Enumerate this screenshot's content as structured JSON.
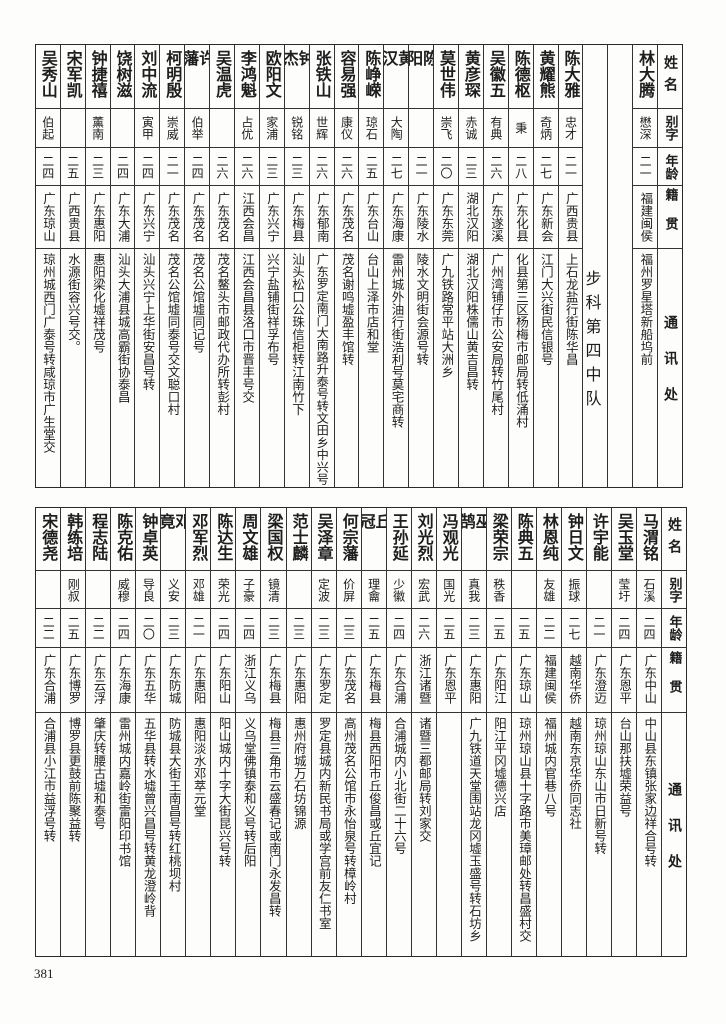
{
  "headers": {
    "name": "姓名",
    "alias": "别字",
    "age": "年龄",
    "native": "籍贯",
    "address": "通讯处"
  },
  "top_table": {
    "first_rows": [
      {
        "name": "林大腾",
        "alias": "懋深",
        "age": "二一",
        "native": "福建闽侯",
        "address": "福州罗星塔新船坞前"
      }
    ],
    "blank_column": "",
    "section_label": "步科第四中队",
    "rows": [
      {
        "name": "陈大雅",
        "alias": "忠才",
        "age": "二一",
        "native": "广西贵县",
        "address": "上石龙盐行街陈华昌"
      },
      {
        "name": "黄耀熊",
        "alias": "奇炳",
        "age": "二七",
        "native": "广东新会",
        "address": "江门大兴街民信银号"
      },
      {
        "name": "陈德枢",
        "alias": "秉",
        "age": "二八",
        "native": "广东化县",
        "address": "化县第三区杨梅市邮局转低涌村"
      },
      {
        "name": "吴徽五",
        "alias": "有典",
        "age": "二六",
        "native": "广东遂溪",
        "address": "广州湾铺仔市公安局转竹尾村"
      },
      {
        "name": "黄彦琛",
        "alias": "赤诚",
        "age": "二三",
        "native": "湖北汉阳",
        "address": "湖北汉阳株儒山黄吉昌转"
      },
      {
        "name": "莫世伟",
        "alias": "崇飞",
        "age": "二〇",
        "native": "广东东莞",
        "address": "广九铁路常平站大洲乡"
      },
      {
        "name": "陈阳",
        "alias": "",
        "age": "二一",
        "native": "广东陵水",
        "address": "陵水文明街会源号转"
      },
      {
        "name": "黄汉",
        "alias": "大陶",
        "age": "二七",
        "native": "广东海康",
        "address": "雷州城外油行街浩利号莫宅商转"
      },
      {
        "name": "陈峥嵘",
        "alias": "琼石",
        "age": "二五",
        "native": "广东台山",
        "address": "台山上泽市店和堂"
      },
      {
        "name": "容易强",
        "alias": "康仪",
        "age": "二六",
        "native": "广东茂名",
        "address": "茂名谢鸣墟盈丰馆转"
      },
      {
        "name": "张铁山",
        "alias": "世辉",
        "age": "二六",
        "native": "广东郁南",
        "address": "广东罗定南门大南路升泰号转文田乡中兴号"
      },
      {
        "name": "钟杰",
        "alias": "锐铭",
        "age": "二三",
        "native": "广东梅县",
        "address": "汕头松口公珠信柜转江南竹下"
      },
      {
        "name": "欧阳文",
        "alias": "家浦",
        "age": "二三",
        "native": "广东兴宁",
        "address": "兴宁盐铺街祥孚布号"
      },
      {
        "name": "李鸿魁",
        "alias": "占优",
        "age": "二六",
        "native": "江西会昌",
        "address": "江西会昌县洛口市晋丰号交"
      },
      {
        "name": "吴温虎",
        "alias": "",
        "age": "二六",
        "native": "广东茂名",
        "address": "茂名鳌头市邮政代办所转彭村"
      },
      {
        "name": "许藩",
        "alias": "伯举",
        "age": "二四",
        "native": "广东茂名",
        "address": "茂名公馆墟同记号"
      },
      {
        "name": "柯明殷",
        "alias": "崇威",
        "age": "二一",
        "native": "广东茂名",
        "address": "茂名公馆墟同泰号交文聪口村"
      },
      {
        "name": "刘中流",
        "alias": "寅甲",
        "age": "二四",
        "native": "广东兴宁",
        "address": "汕头兴宁上华街安昌号转"
      },
      {
        "name": "饶树滋",
        "alias": "",
        "age": "二四",
        "native": "广东大浦",
        "address": "汕头大浦县城高霸街协泰昌"
      },
      {
        "name": "钟捷禧",
        "alias": "薰南",
        "age": "二三",
        "native": "广东惠阳",
        "address": "惠阳梁化墟祥茂号"
      },
      {
        "name": "宋军凯",
        "alias": "",
        "age": "二五",
        "native": "广西贵县",
        "address": "水源街容兴号交。"
      },
      {
        "name": "吴秀山",
        "alias": "伯起",
        "age": "二四",
        "native": "广东琼山",
        "address": "琼州城西门广泰号转咸琼市广生堂交"
      }
    ]
  },
  "bottom_table": {
    "rows": [
      {
        "name": "马渭铭",
        "alias": "石溪",
        "age": "二四",
        "native": "广东中山",
        "address": "中山县东镇张家边祥合号转"
      },
      {
        "name": "吴玉堂",
        "alias": "莹圩",
        "age": "二四",
        "native": "广东恩平",
        "address": "台山那扶墟荣益号"
      },
      {
        "name": "许宇能",
        "alias": "",
        "age": "二一",
        "native": "广东澄迈",
        "address": "琼州琼山东山市日新号转"
      },
      {
        "name": "钟日文",
        "alias": "振球",
        "age": "二七",
        "native": "越南华侨",
        "address": "越南东京华侨同志社"
      },
      {
        "name": "林恩纯",
        "alias": "友雄",
        "age": "二二",
        "native": "福建闽侯",
        "address": "福州城内官巷八号"
      },
      {
        "name": "陈典五",
        "alias": "",
        "age": "二五",
        "native": "广东琼山",
        "address": "琼州琼山县十字路市美璋邮处转昌盛村交"
      },
      {
        "name": "梁荣宗",
        "alias": "秩香",
        "age": "二五",
        "native": "广东阳江",
        "address": "阳江平冈墟德兴店"
      },
      {
        "name": "巫鹄",
        "alias": "真我",
        "age": "二三",
        "native": "广东惠阳",
        "address": "广九铁道天堂围站龙冈墟玉盛号转石坊乡"
      },
      {
        "name": "冯观光",
        "alias": "国光",
        "age": "二五",
        "native": "广东恩平",
        "address": ""
      },
      {
        "name": "刘光烈",
        "alias": "宏武",
        "age": "二六",
        "native": "浙江诸暨",
        "address": "诸暨三都邮局转刘家交"
      },
      {
        "name": "王孙延",
        "alias": "少徽",
        "age": "二四",
        "native": "广东合浦",
        "address": "合浦城内小北街二十六号"
      },
      {
        "name": "丘冠",
        "alias": "理龠",
        "age": "二五",
        "native": "广东梅县",
        "address": "梅县西阳市丘俊昌或丘宜记"
      },
      {
        "name": "何宗藩",
        "alias": "价屏",
        "age": "二三",
        "native": "广东茂名",
        "address": "高州茂名公馆市永怡泉号转樟岭村"
      },
      {
        "name": "吴泽章",
        "alias": "定波",
        "age": "二三",
        "native": "广东罗定",
        "address": "罗定县城内新民书局或学宫前友仁书室"
      },
      {
        "name": "范士麟",
        "alias": "",
        "age": "二三",
        "native": "广东惠阳",
        "address": "惠州府城万石坊锦源"
      },
      {
        "name": "梁国权",
        "alias": "镜清",
        "age": "二三",
        "native": "广东梅县",
        "address": "梅县三角市云盛春记或南门永发昌转"
      },
      {
        "name": "周文雄",
        "alias": "子豪",
        "age": "二四",
        "native": "浙江义乌",
        "address": "义乌堂佛镇泰和义号转后阳"
      },
      {
        "name": "陈达生",
        "alias": "荣光",
        "age": "二四",
        "native": "广东阳山",
        "address": "阳山城内十字大街昆兴号转"
      },
      {
        "name": "邓军烈",
        "alias": "邓雄",
        "age": "二一",
        "native": "广东惠阳",
        "address": "惠阳淡水邓萃元堂"
      },
      {
        "name": "邓竟",
        "alias": "义安",
        "age": "二三",
        "native": "广东防城",
        "address": "防城县大街王南昌号转红桃坝村"
      },
      {
        "name": "钟卓英",
        "alias": "导良",
        "age": "二〇",
        "native": "广东五华",
        "address": "五华县转水墟曾兴昌号转黄龙澄岭背"
      },
      {
        "name": "陈克佑",
        "alias": "威穆",
        "age": "二四",
        "native": "广东海康",
        "address": "雷州城内嘉岭街雷阳印书馆"
      },
      {
        "name": "程志陆",
        "alias": "",
        "age": "二二",
        "native": "广东云浮",
        "address": "肇庆转腰古墟和泰号"
      },
      {
        "name": "韩练培",
        "alias": "刚叔",
        "age": "二五",
        "native": "广东博罗",
        "address": "博罗县更鼓前陈聚益转"
      },
      {
        "name": "宋德尧",
        "alias": "",
        "age": "二二",
        "native": "广东合浦",
        "address": "合浦县小江市益浮号转"
      }
    ]
  },
  "page_number": "381"
}
